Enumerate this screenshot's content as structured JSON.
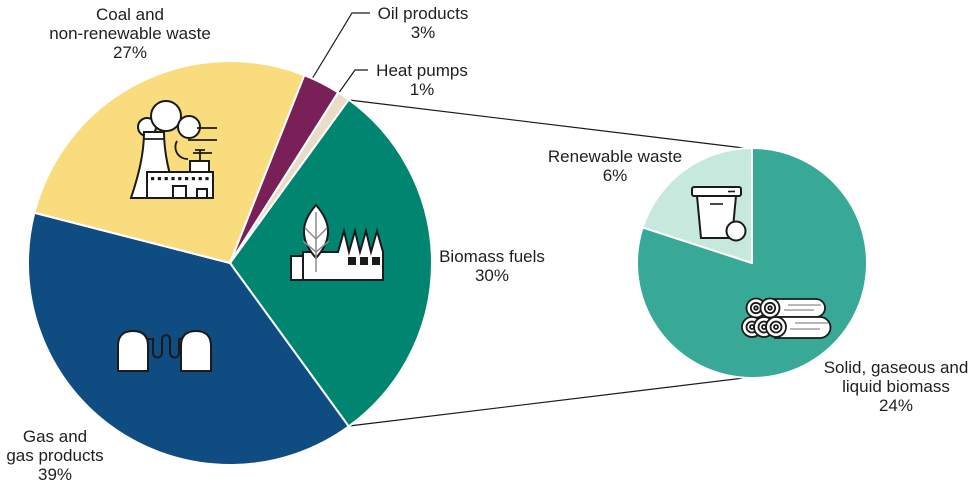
{
  "chart_data": [
    {
      "type": "pie",
      "name": "main-fuel-mix-pie",
      "unit": "%",
      "start_angle_deg": 36,
      "legend_position": "none",
      "slices": [
        {
          "label": "Biomass fuels",
          "value": 30,
          "color": "#008570"
        },
        {
          "label": "Gas and gas products",
          "value": 39,
          "color": "#0F4C81"
        },
        {
          "label": "Coal and non-renewable waste",
          "value": 27,
          "color": "#F9DC7D"
        },
        {
          "label": "Oil products",
          "value": 3,
          "color": "#7A2058"
        },
        {
          "label": "Heat pumps",
          "value": 1,
          "color": "#E8DDC6"
        }
      ]
    },
    {
      "type": "pie",
      "name": "biomass-fuels-breakdown-pie",
      "unit": "%",
      "start_angle_deg": 0,
      "parent_slice": "Biomass fuels",
      "slices": [
        {
          "label": "Solid, gaseous and liquid biomass",
          "value": 24,
          "color": "#38A897"
        },
        {
          "label": "Renewable waste",
          "value": 6,
          "color": "#C7E9DD"
        }
      ]
    }
  ],
  "labels": {
    "coal": {
      "lines": [
        "Coal and",
        "non-renewable waste",
        "27%"
      ]
    },
    "oil": {
      "lines": [
        "Oil products",
        "3%"
      ]
    },
    "heat_pumps": {
      "lines": [
        "Heat pumps",
        "1%"
      ]
    },
    "biomass": {
      "lines": [
        "Biomass fuels",
        "30%"
      ]
    },
    "gas": {
      "lines": [
        "Gas and",
        "gas products",
        "39%"
      ]
    },
    "renewable_waste": {
      "lines": [
        "Renewable waste",
        "6%"
      ]
    },
    "solid_biomass": {
      "lines": [
        "Solid, gaseous and",
        "liquid biomass",
        "24%"
      ]
    }
  },
  "icons": {
    "coal_slice": "power-plant-icon",
    "gas_slice": "gas-storage-tanks-icon",
    "biomass_slice": "biomass-factory-leaf-icon",
    "renewable_waste_slice": "waste-bin-icon",
    "solid_biomass_slice": "wood-logs-icon"
  },
  "colors": {
    "background": "#ffffff",
    "text": "#1f1f1f",
    "callout_lines": "#1a1a1a",
    "slice_border": "#ffffff"
  }
}
